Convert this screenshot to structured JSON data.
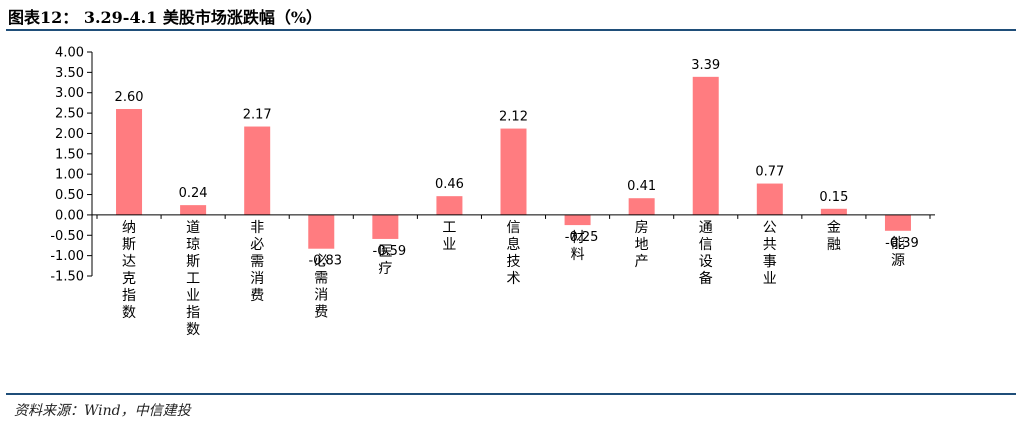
{
  "title": "图表12： 3.29-4.1 美股市场涨跌幅（%）",
  "source": "资料来源：Wind，中信建投",
  "colors": {
    "bar": "#ff7c80",
    "rule": "#1f4e79",
    "axis": "#000000"
  },
  "chart_data": {
    "type": "bar",
    "title": "",
    "xlabel": "",
    "ylabel": "",
    "ylim": [
      -1.5,
      4.0
    ],
    "yticks": [
      "4.00",
      "3.50",
      "3.00",
      "2.50",
      "2.00",
      "1.50",
      "1.00",
      "0.50",
      "0.00",
      "-0.50",
      "-1.00",
      "-1.50"
    ],
    "categories": [
      "纳斯达克指数",
      "道琼斯工业指数",
      "非必需消费",
      "必需消费",
      "医疗",
      "工业",
      "信息技术",
      "材料",
      "房地产",
      "通信设备",
      "公共事业",
      "金融",
      "能源"
    ],
    "values": [
      2.6,
      0.24,
      2.17,
      -0.83,
      -0.59,
      0.46,
      2.12,
      -0.25,
      0.41,
      3.39,
      0.77,
      0.15,
      -0.39
    ],
    "value_labels": [
      "2.60",
      "0.24",
      "2.17",
      "-0.83",
      "-0.59",
      "0.46",
      "2.12",
      "-0.25",
      "0.41",
      "3.39",
      "0.77",
      "0.15",
      "-0.39"
    ],
    "grid": false,
    "legend": "none"
  }
}
